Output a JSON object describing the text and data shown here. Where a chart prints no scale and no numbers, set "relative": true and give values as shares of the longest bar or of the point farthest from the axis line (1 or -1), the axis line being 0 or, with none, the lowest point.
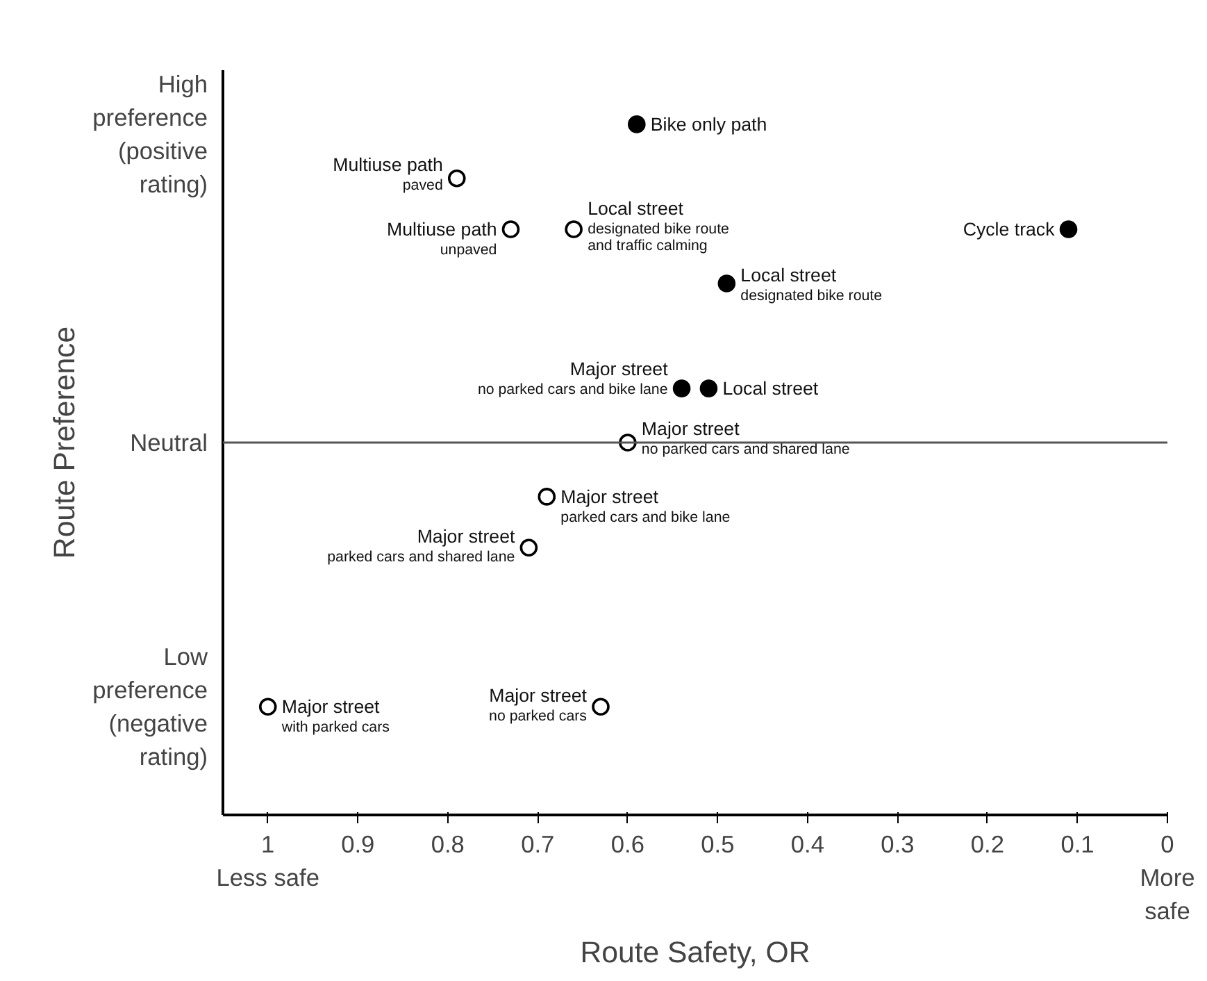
{
  "chart_data": {
    "type": "scatter",
    "xlabel": "Route Safety, OR",
    "ylabel": "Route Preference",
    "xlim": [
      1.05,
      0
    ],
    "relative": true,
    "xticks": [
      {
        "value": 1,
        "label": "1\nLess safe"
      },
      0.9,
      0.8,
      0.7,
      0.6,
      0.5,
      0.4,
      0.3,
      0.2,
      0.1,
      {
        "value": 0,
        "label": "0\nMore\nsafe"
      }
    ],
    "marker": "circle",
    "series": [
      {
        "color": "#000000",
        "x": [
          0.59,
          0.11,
          0.49,
          0.54,
          0.51
        ],
        "values": [
          1,
          0.67,
          0.5,
          0.17,
          0.17
        ]
      },
      {
        "color": "#ffffff",
        "x": [
          0.79,
          0.73,
          0.66,
          0.6,
          0.69,
          0.71,
          1.0,
          0.63
        ],
        "values": [
          0.83,
          0.67,
          0.67,
          0,
          -0.17,
          -0.33,
          -0.83,
          -0.83
        ]
      }
    ],
    "ref_lines": [
      {
        "axis": "y",
        "value": 0,
        "color": "#555555",
        "label": "Neutral"
      }
    ],
    "annotations": [
      "High\npreference\n(positive\nrating)",
      "Low\npreference\n(negative\nrating)",
      {
        "text": "Bike only path",
        "x": 0.59,
        "y": 1
      },
      {
        "text": "Cycle track",
        "x": 0.11,
        "y": 0.67
      },
      {
        "text": "Local street\ndesignated bike route",
        "x": 0.49,
        "y": 0.5
      },
      {
        "text": "Major street\nno parked cars and bike lane",
        "x": 0.54,
        "y": 0.17
      },
      {
        "text": "Local street",
        "x": 0.51,
        "y": 0.17
      },
      {
        "text": "Multiuse path\npaved",
        "x": 0.79,
        "y": 0.83
      },
      {
        "text": "Multiuse path\nunpaved",
        "x": 0.73,
        "y": 0.67
      },
      {
        "text": "Local street\ndesignated bike route\nand traffic calming",
        "x": 0.66,
        "y": 0.67
      },
      {
        "text": "Major street\nno parked cars and shared lane",
        "x": 0.6,
        "y": 0
      },
      {
        "text": "Major street\nparked cars and bike lane",
        "x": 0.69,
        "y": -0.17
      },
      {
        "text": "Major street\nparked cars and shared lane",
        "x": 0.71,
        "y": -0.33
      },
      {
        "text": "Major street\nwith parked cars",
        "x": 1.0,
        "y": -0.83
      },
      {
        "text": "Major street\nno parked cars",
        "x": 0.63,
        "y": -0.83
      }
    ]
  }
}
